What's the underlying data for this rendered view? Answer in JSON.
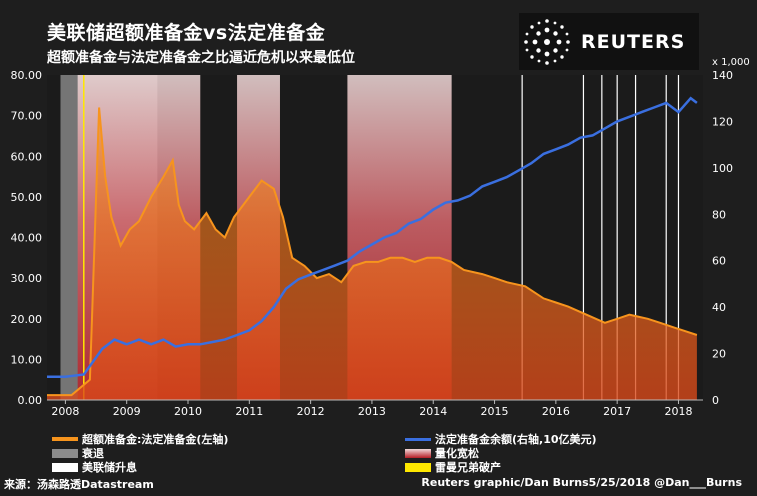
{
  "title": "美联储超额准备金vs法定准备金",
  "subtitle": "超额准备金与法定准备金之比逼近危机以来最低位",
  "logo": {
    "text": "REUTERS"
  },
  "source": "来源：汤森路透Datastream",
  "credit": "Reuters graphic/Dan Burns5/25/2018 @Dan___Burns",
  "legend": {
    "ratio": "超额准备金:法定准备金(左轴)",
    "required": "法定准备金余额(右轴,10亿美元)",
    "recession": "衰退",
    "qe": "量化宽松",
    "hike": "美联储升息",
    "lehman": "雷曼兄弟破产"
  },
  "colors": {
    "ratio": "#f7941d",
    "required": "#3a6fe0",
    "recession": "#8c8c8c",
    "hike": "#ffffff",
    "lehman": "#ffe800"
  },
  "chart_data": {
    "type": "line",
    "title": "美联储超额准备金vs法定准备金",
    "y_left": {
      "ticks": [
        "0.00",
        "10.00",
        "20.00",
        "30.00",
        "40.00",
        "50.00",
        "60.00",
        "70.00",
        "80.00"
      ],
      "range": [
        0,
        80
      ]
    },
    "y_right": {
      "ticks": [
        "0",
        "20",
        "40",
        "60",
        "80",
        "100",
        "120",
        "140"
      ],
      "range": [
        0,
        140
      ],
      "unit": "x 1,000"
    },
    "x_labels": [
      {
        "label": "2008",
        "t": 2008.0
      },
      {
        "label": "2009",
        "t": 2009.0
      },
      {
        "label": "2010",
        "t": 2010.0
      },
      {
        "label": "2011",
        "t": 2011.0
      },
      {
        "label": "2012",
        "t": 2012.0
      },
      {
        "label": "2013",
        "t": 2013.0
      },
      {
        "label": "2014",
        "t": 2014.0
      },
      {
        "label": "2015",
        "t": 2015.0
      },
      {
        "label": "2016",
        "t": 2016.0
      },
      {
        "label": "2017",
        "t": 2017.0
      },
      {
        "label": "2018",
        "t": 2018.0
      }
    ],
    "x_range": [
      2007.7,
      2018.4
    ],
    "recession": [
      2007.92,
      2009.5
    ],
    "qe_periods": [
      [
        2008.2,
        2010.2
      ],
      [
        2010.8,
        2011.5
      ],
      [
        2012.6,
        2014.3
      ]
    ],
    "rate_hikes": [
      2015.45,
      2016.45,
      2016.75,
      2017.0,
      2017.3,
      2017.8,
      2018.0
    ],
    "lehman": 2008.3,
    "series": [
      {
        "name": "超额准备金:法定准备金(左轴)",
        "axis": "left",
        "points": [
          [
            2007.7,
            1.2
          ],
          [
            2008.1,
            1.2
          ],
          [
            2008.4,
            5
          ],
          [
            2008.55,
            72
          ],
          [
            2008.65,
            55
          ],
          [
            2008.75,
            45
          ],
          [
            2008.9,
            38
          ],
          [
            2009.05,
            42
          ],
          [
            2009.2,
            44
          ],
          [
            2009.4,
            50
          ],
          [
            2009.6,
            55
          ],
          [
            2009.75,
            59
          ],
          [
            2009.85,
            48
          ],
          [
            2009.95,
            44
          ],
          [
            2010.1,
            42
          ],
          [
            2010.3,
            46
          ],
          [
            2010.45,
            42
          ],
          [
            2010.6,
            40
          ],
          [
            2010.75,
            45
          ],
          [
            2010.9,
            48
          ],
          [
            2011.0,
            50
          ],
          [
            2011.2,
            54
          ],
          [
            2011.4,
            52
          ],
          [
            2011.55,
            45
          ],
          [
            2011.7,
            35
          ],
          [
            2011.9,
            33
          ],
          [
            2012.1,
            30
          ],
          [
            2012.3,
            31
          ],
          [
            2012.5,
            29
          ],
          [
            2012.7,
            33
          ],
          [
            2012.9,
            34
          ],
          [
            2013.1,
            34
          ],
          [
            2013.3,
            35
          ],
          [
            2013.5,
            35
          ],
          [
            2013.7,
            34
          ],
          [
            2013.9,
            35
          ],
          [
            2014.1,
            35
          ],
          [
            2014.3,
            34
          ],
          [
            2014.5,
            32
          ],
          [
            2014.8,
            31
          ],
          [
            2015.0,
            30
          ],
          [
            2015.2,
            29
          ],
          [
            2015.5,
            28
          ],
          [
            2015.8,
            25
          ],
          [
            2016.0,
            24
          ],
          [
            2016.2,
            23
          ],
          [
            2016.5,
            21
          ],
          [
            2016.8,
            19
          ],
          [
            2017.0,
            20
          ],
          [
            2017.2,
            21
          ],
          [
            2017.5,
            20
          ],
          [
            2017.7,
            19
          ],
          [
            2017.9,
            18
          ],
          [
            2018.1,
            17
          ],
          [
            2018.3,
            16
          ]
        ]
      },
      {
        "name": "法定准备金余额(右轴,10亿美元)",
        "axis": "right",
        "points": [
          [
            2007.7,
            10
          ],
          [
            2008.0,
            10
          ],
          [
            2008.3,
            11
          ],
          [
            2008.6,
            22
          ],
          [
            2008.8,
            26
          ],
          [
            2009.0,
            24
          ],
          [
            2009.2,
            26
          ],
          [
            2009.4,
            24
          ],
          [
            2009.6,
            26
          ],
          [
            2009.8,
            23
          ],
          [
            2010.0,
            24
          ],
          [
            2010.2,
            24
          ],
          [
            2010.4,
            25
          ],
          [
            2010.6,
            26
          ],
          [
            2010.8,
            28
          ],
          [
            2011.0,
            30
          ],
          [
            2011.2,
            34
          ],
          [
            2011.4,
            40
          ],
          [
            2011.6,
            48
          ],
          [
            2011.8,
            52
          ],
          [
            2012.0,
            54
          ],
          [
            2012.2,
            56
          ],
          [
            2012.4,
            58
          ],
          [
            2012.6,
            60
          ],
          [
            2012.8,
            64
          ],
          [
            2013.0,
            67
          ],
          [
            2013.2,
            70
          ],
          [
            2013.4,
            72
          ],
          [
            2013.6,
            76
          ],
          [
            2013.8,
            78
          ],
          [
            2014.0,
            82
          ],
          [
            2014.2,
            85
          ],
          [
            2014.4,
            86
          ],
          [
            2014.6,
            88
          ],
          [
            2014.8,
            92
          ],
          [
            2015.0,
            94
          ],
          [
            2015.2,
            96
          ],
          [
            2015.4,
            99
          ],
          [
            2015.6,
            102
          ],
          [
            2015.8,
            106
          ],
          [
            2016.0,
            108
          ],
          [
            2016.2,
            110
          ],
          [
            2016.4,
            113
          ],
          [
            2016.6,
            114
          ],
          [
            2016.8,
            117
          ],
          [
            2017.0,
            120
          ],
          [
            2017.2,
            122
          ],
          [
            2017.4,
            124
          ],
          [
            2017.6,
            126
          ],
          [
            2017.8,
            128
          ],
          [
            2018.0,
            124
          ],
          [
            2018.2,
            130
          ],
          [
            2018.3,
            128
          ]
        ]
      }
    ]
  }
}
